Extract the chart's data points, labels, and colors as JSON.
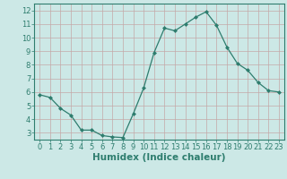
{
  "x": [
    0,
    1,
    2,
    3,
    4,
    5,
    6,
    7,
    8,
    9,
    10,
    11,
    12,
    13,
    14,
    15,
    16,
    17,
    18,
    19,
    20,
    21,
    22,
    23
  ],
  "y": [
    5.8,
    5.6,
    4.8,
    4.3,
    3.2,
    3.2,
    2.8,
    2.7,
    2.65,
    4.4,
    6.3,
    8.9,
    10.7,
    10.5,
    11.0,
    11.5,
    11.9,
    10.9,
    9.3,
    8.1,
    7.6,
    6.7,
    6.1,
    6.0
  ],
  "line_color": "#2e7d6e",
  "marker": "D",
  "marker_size": 2.0,
  "bg_color": "#cce8e6",
  "grid_color": "#c4a8a8",
  "xlabel": "Humidex (Indice chaleur)",
  "ylim": [
    2.5,
    12.5
  ],
  "xlim": [
    -0.5,
    23.5
  ],
  "yticks": [
    3,
    4,
    5,
    6,
    7,
    8,
    9,
    10,
    11,
    12
  ],
  "xticks": [
    0,
    1,
    2,
    3,
    4,
    5,
    6,
    7,
    8,
    9,
    10,
    11,
    12,
    13,
    14,
    15,
    16,
    17,
    18,
    19,
    20,
    21,
    22,
    23
  ],
  "tick_fontsize": 6.0,
  "label_fontsize": 7.5
}
